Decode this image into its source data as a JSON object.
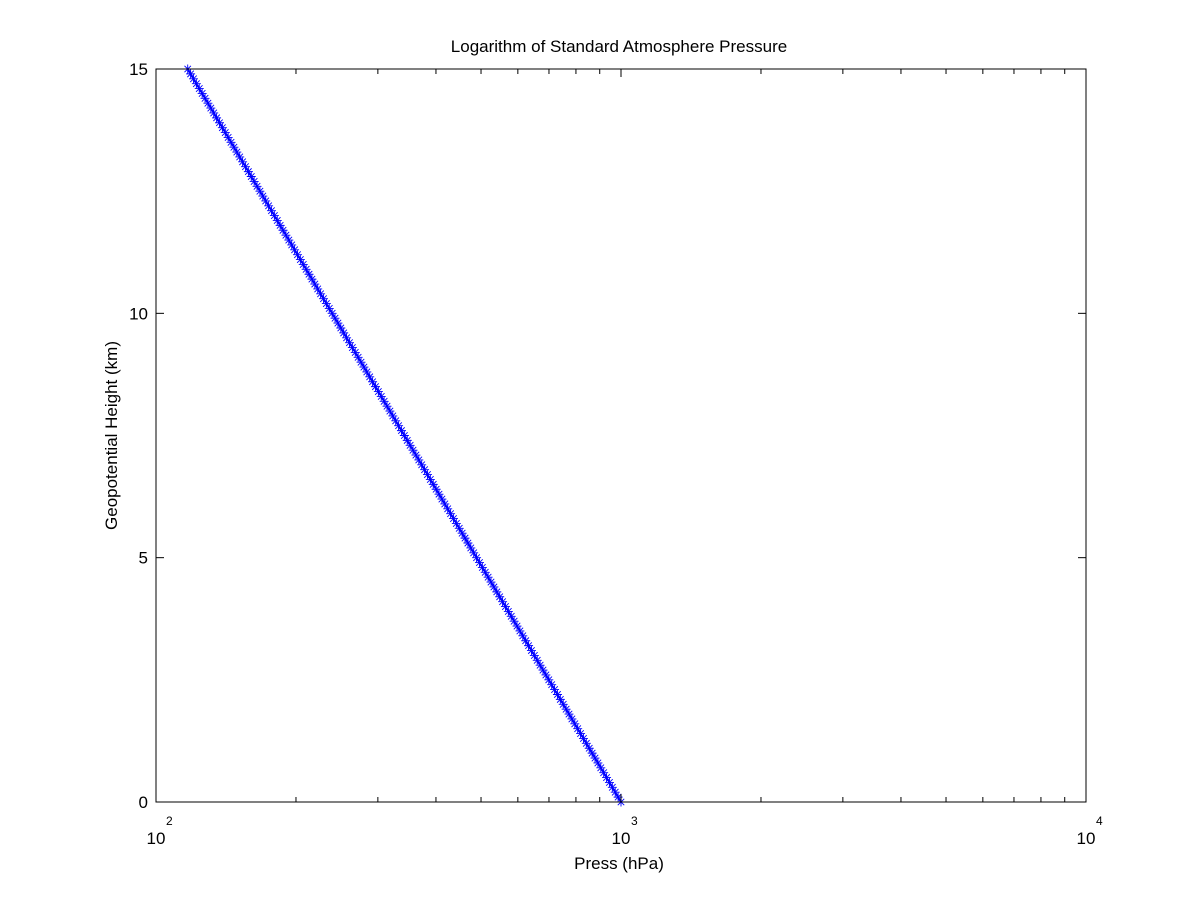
{
  "chart_data": {
    "type": "scatter",
    "title": "Logarithm of Standard Atmosphere Pressure",
    "xlabel": "Press (hPa)",
    "ylabel": "Geopotential Height (km)",
    "xscale": "log",
    "xlim": [
      100,
      10000
    ],
    "ylim": [
      0,
      15
    ],
    "x_ticks": [
      {
        "base": "10",
        "exp": "2",
        "value": 100
      },
      {
        "base": "10",
        "exp": "3",
        "value": 1000
      },
      {
        "base": "10",
        "exp": "4",
        "value": 10000
      }
    ],
    "y_ticks": [
      {
        "label": "0",
        "value": 0
      },
      {
        "label": "5",
        "value": 5
      },
      {
        "label": "10",
        "value": 10
      },
      {
        "label": "15",
        "value": 15
      }
    ],
    "grid": false,
    "marker": "asterisk",
    "line_color": "#0000ff",
    "marker_color": "#0000ff",
    "series": [
      {
        "height_start_km": 0,
        "height_end_km": 15,
        "height_step_km": 0.1,
        "pressure_at_start_hpa": 1000,
        "pressure_at_end_hpa": 117,
        "relation": "log-linear (pressure decays exponentially with height)"
      }
    ]
  }
}
